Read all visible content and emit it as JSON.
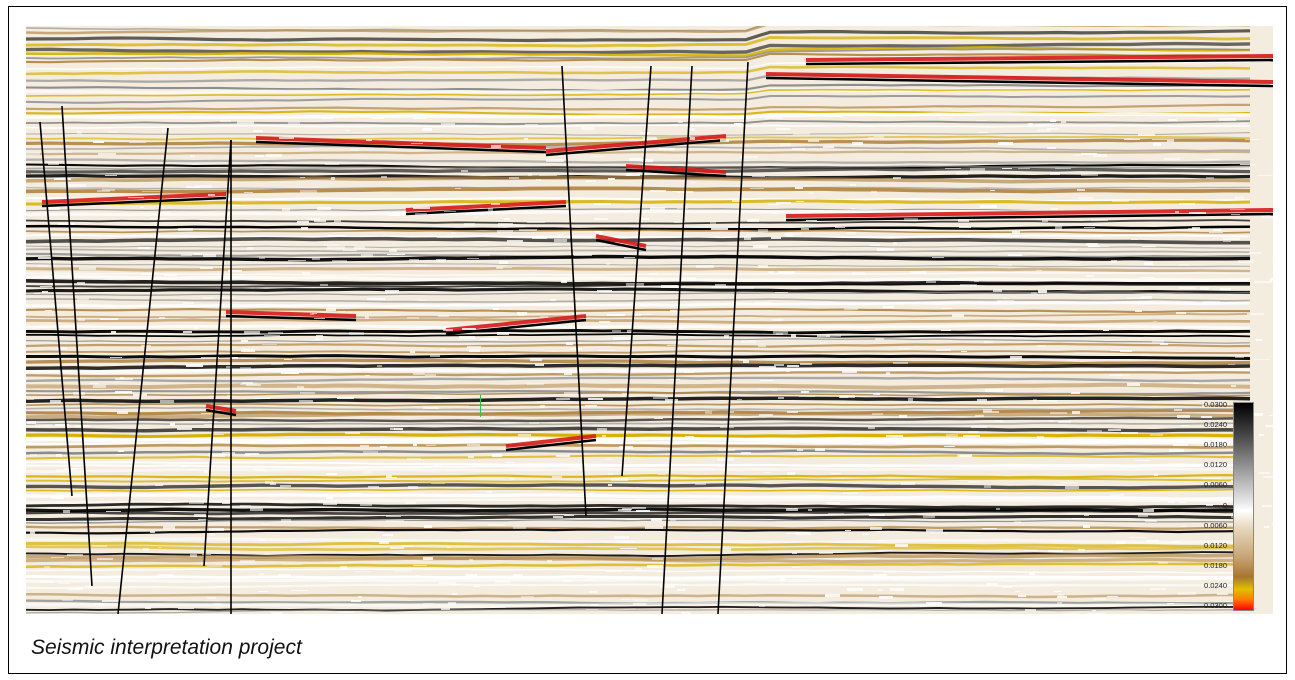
{
  "caption": "Seismic interpretation project",
  "colorbar": {
    "labels": [
      "0.0300",
      "0.0240",
      "0.0180",
      "0.0120",
      "0.0060",
      "0",
      "0.0060",
      "0.0120",
      "0.0180",
      "0.0240",
      "0.0300"
    ],
    "colors": {
      "positive_max": "#000000",
      "zero": "#ffffff",
      "negative_mid": "#a5762f",
      "negative_high": "#e3c000",
      "negative_max": "#ff0000"
    }
  },
  "palette": {
    "background": "#f3ecdf",
    "trough": "#000000",
    "peak_strong": "#d81a1a",
    "peak_mid": "#d6b000",
    "tan": "#b48a4b",
    "grey": "#8a8a8a"
  }
}
